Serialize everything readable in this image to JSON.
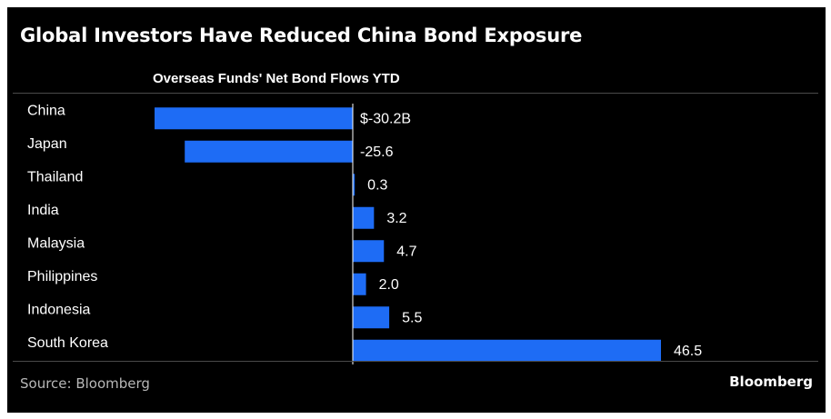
{
  "header": {
    "title": "Global Investors Have Reduced China Bond Exposure",
    "subtitle": "Overseas Funds' Net Bond Flows YTD"
  },
  "footer": {
    "source": "Source: Bloomberg",
    "brand": "Bloomberg"
  },
  "colors": {
    "background": "#000000",
    "bar": "#1e6cf5",
    "text": "#ffffff",
    "axis": "#ffffff"
  },
  "chart_data": {
    "type": "bar",
    "orientation": "horizontal",
    "title": "Global Investors Have Reduced China Bond Exposure",
    "subtitle": "Overseas Funds' Net Bond Flows YTD",
    "categories": [
      "China",
      "Japan",
      "Thailand",
      "India",
      "Malaysia",
      "Philippines",
      "Indonesia",
      "South Korea"
    ],
    "values": [
      -30.2,
      -25.6,
      0.3,
      3.2,
      4.7,
      2.0,
      5.5,
      46.5
    ],
    "value_labels": [
      "$-30.2B",
      "-25.6",
      "0.3",
      "3.2",
      "4.7",
      "2.0",
      "5.5",
      "46.5"
    ],
    "unit": "$B",
    "xlim": [
      -30.2,
      46.5
    ],
    "grid": false,
    "legend": "none"
  }
}
